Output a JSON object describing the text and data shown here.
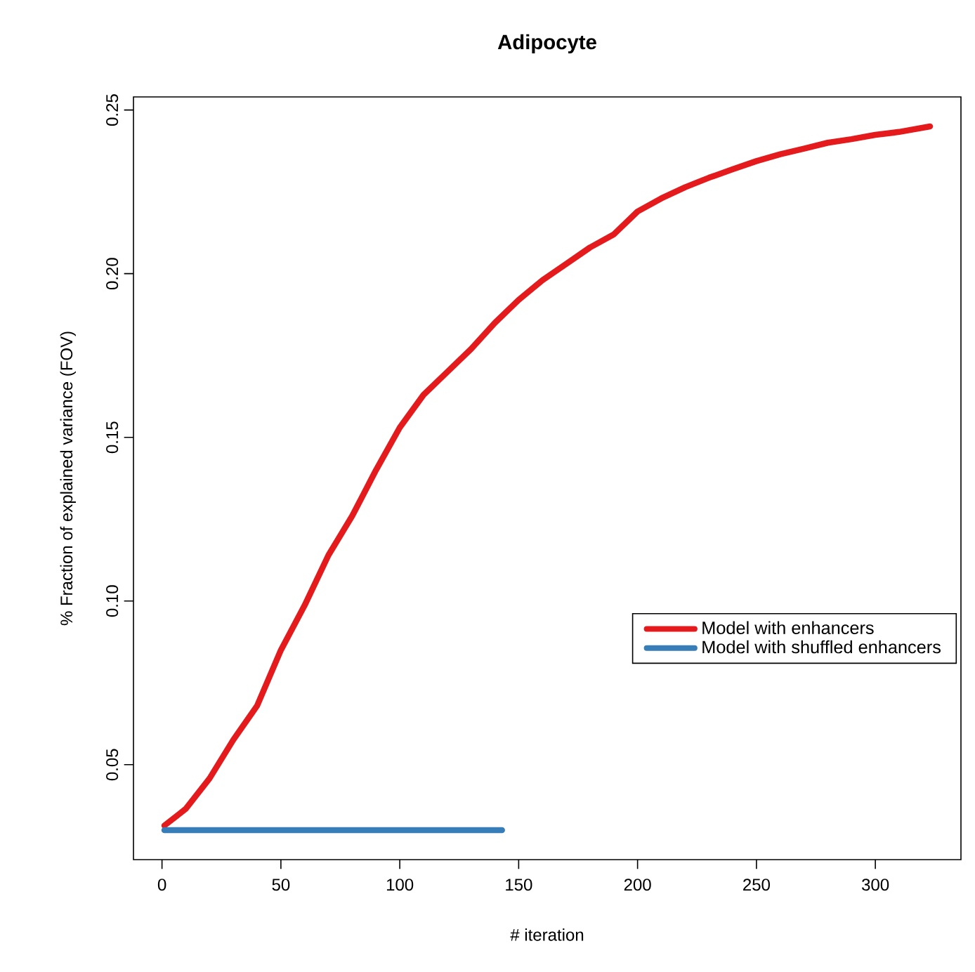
{
  "chart_data": {
    "type": "line",
    "title": "Adipocyte",
    "xlabel": "# iteration",
    "ylabel": "% Fraction of explained variance (FOV)",
    "xlim": [
      -12,
      336
    ],
    "ylim": [
      0.021,
      0.254
    ],
    "xticks": [
      0,
      50,
      100,
      150,
      200,
      250,
      300
    ],
    "yticks": [
      0.05,
      {
        "value": 0.1,
        "label": "0.10"
      },
      0.15,
      {
        "value": 0.2,
        "label": "0.20"
      },
      0.25
    ],
    "grid": false,
    "legend": "right",
    "marker": "none",
    "line_style": "solid",
    "series": [
      {
        "name": "Model with enhancers",
        "color": "#e41a1c",
        "x": [
          1,
          10,
          20,
          30,
          40,
          50,
          60,
          70,
          80,
          90,
          100,
          110,
          120,
          130,
          140,
          150,
          160,
          170,
          180,
          190,
          200,
          210,
          220,
          230,
          240,
          250,
          260,
          270,
          280,
          290,
          300,
          310,
          323
        ],
        "values": [
          0.0314,
          0.0365,
          0.0458,
          0.0576,
          0.068,
          0.085,
          0.0987,
          0.114,
          0.126,
          0.14,
          0.153,
          0.163,
          0.17,
          0.177,
          0.185,
          0.192,
          0.198,
          0.203,
          0.208,
          0.212,
          0.219,
          0.223,
          0.2264,
          0.2293,
          0.2319,
          0.2344,
          0.2365,
          0.2382,
          0.24,
          0.2411,
          0.2424,
          0.2433,
          0.245
        ]
      },
      {
        "name": "Model with shuffled enhancers",
        "color": "#377eb8",
        "x": [
          1,
          50,
          100,
          143
        ],
        "values": [
          0.03,
          0.03,
          0.03,
          0.03
        ]
      }
    ]
  }
}
